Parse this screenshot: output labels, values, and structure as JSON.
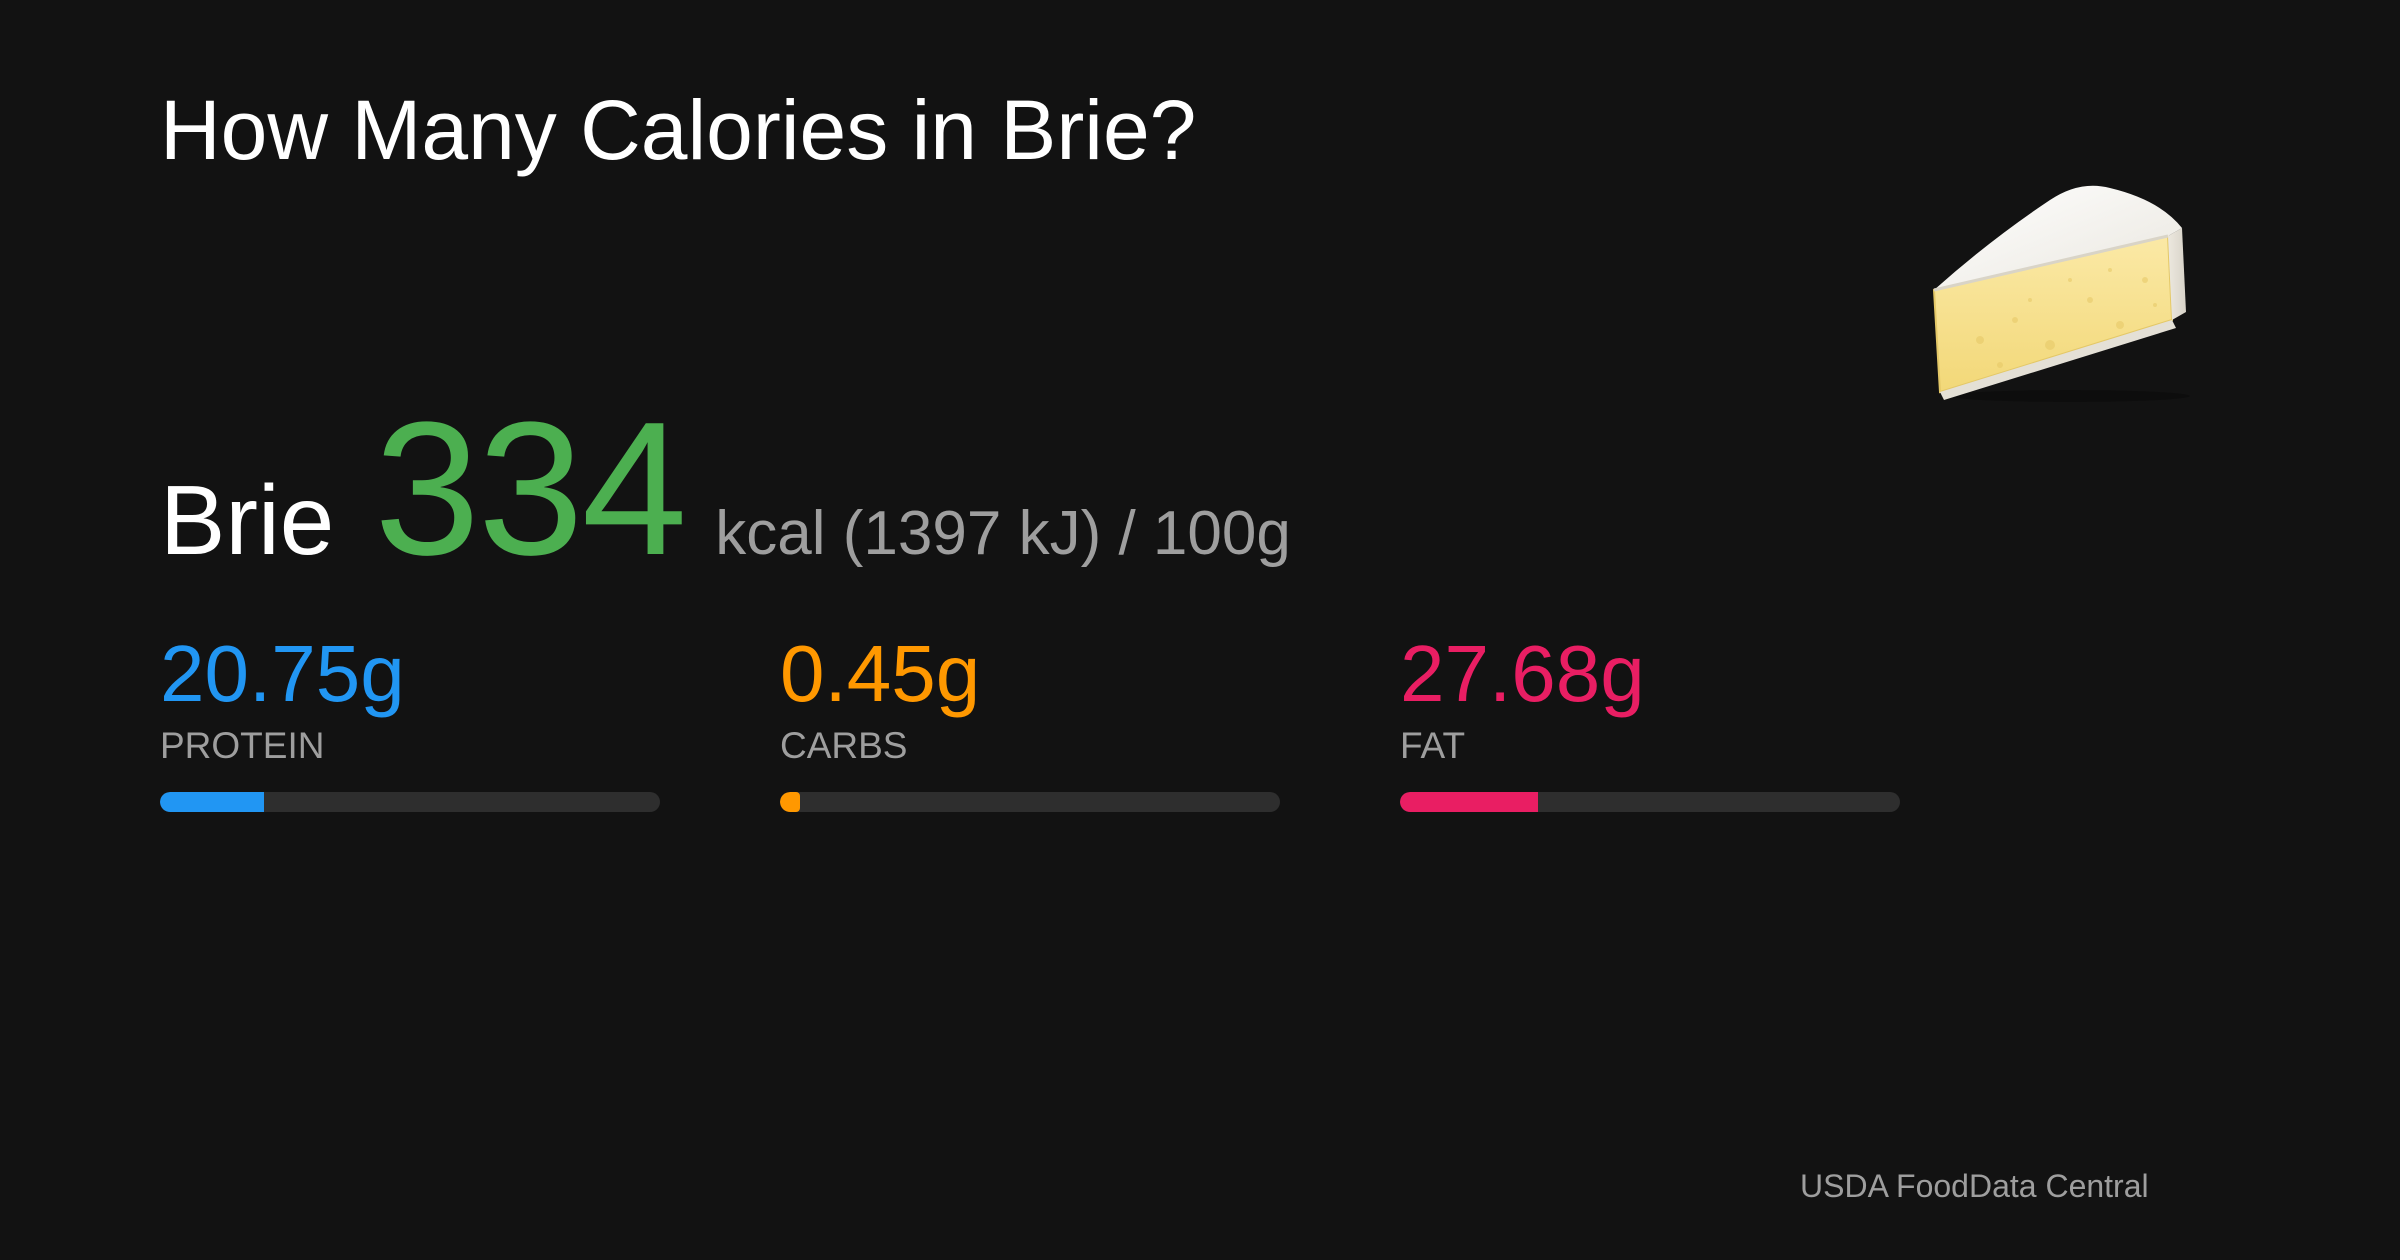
{
  "title": "How Many Calories in Brie?",
  "food": {
    "name": "Brie",
    "kcal": "334",
    "unit": "kcal (1397 kJ) / 100g",
    "icon": "cheese-wedge-icon"
  },
  "macros": {
    "protein": {
      "value": "20.75g",
      "label": "PROTEIN",
      "color": "#2196f3",
      "percent": 20.75
    },
    "carbs": {
      "value": "0.45g",
      "label": "CARBS",
      "color": "#ff9800",
      "percent": 0.45
    },
    "fat": {
      "value": "27.68g",
      "label": "FAT",
      "color": "#e91e63",
      "percent": 27.68
    }
  },
  "source": "USDA FoodData Central",
  "colors": {
    "background": "#121212",
    "kcal": "#4caf50",
    "muted": "#9e9e9e",
    "track": "#2e2e2e"
  }
}
